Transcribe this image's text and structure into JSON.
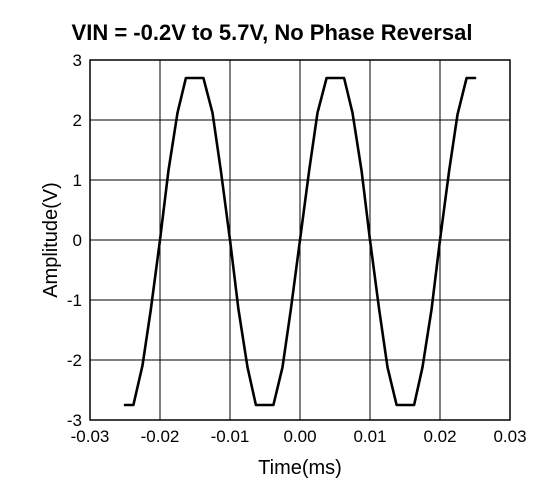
{
  "chart_data": {
    "type": "line",
    "title": "VIN = -0.2V to 5.7V, No Phase Reversal",
    "xlabel": "Time(ms)",
    "ylabel": "Amplitude(V)",
    "xlim": [
      -0.03,
      0.03
    ],
    "ylim": [
      -3,
      3
    ],
    "xticks": [
      "-0.03",
      "-0.02",
      "-0.01",
      "0.00",
      "0.01",
      "0.02",
      "0.03"
    ],
    "yticks": [
      "3",
      "2",
      "1",
      "0",
      "-1",
      "-2",
      "-3"
    ],
    "grid": true,
    "legend": "none",
    "colors": {
      "trace": "#000000",
      "grid": "#000000",
      "background": "#ffffff"
    },
    "series": [
      {
        "x": [
          -0.025,
          -0.0238,
          -0.0225,
          -0.0213,
          -0.02,
          -0.0188,
          -0.0175,
          -0.0163,
          -0.015,
          -0.0138,
          -0.0125,
          -0.0113,
          -0.01,
          -0.0088,
          -0.0075,
          -0.0063,
          -0.005,
          -0.0038,
          -0.0025,
          -0.0013,
          0.0,
          0.0013,
          0.0025,
          0.0038,
          0.005,
          0.0063,
          0.0075,
          0.0088,
          0.01,
          0.0113,
          0.0125,
          0.0138,
          0.015,
          0.0163,
          0.0175,
          0.0188,
          0.02,
          0.0213,
          0.0225,
          0.0238,
          0.025
        ],
        "y": [
          -2.75,
          -2.75,
          -2.09,
          -1.15,
          0.0,
          1.15,
          2.12,
          2.7,
          2.7,
          2.7,
          2.12,
          1.15,
          0.0,
          -1.15,
          -2.12,
          -2.75,
          -2.75,
          -2.75,
          -2.12,
          -1.15,
          0.0,
          1.15,
          2.12,
          2.7,
          2.7,
          2.7,
          2.12,
          1.15,
          0.0,
          -1.15,
          -2.12,
          -2.75,
          -2.75,
          -2.75,
          -2.12,
          -1.15,
          0.0,
          1.15,
          2.09,
          2.7,
          2.7
        ]
      }
    ]
  }
}
